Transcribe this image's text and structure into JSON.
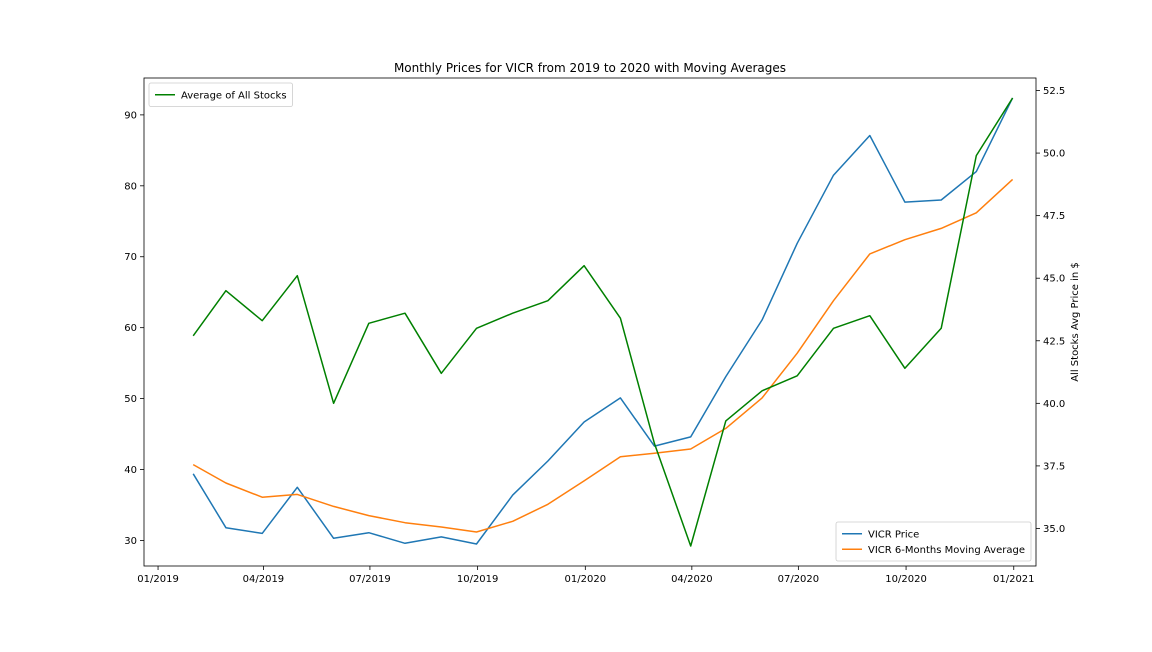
{
  "chart_data": {
    "type": "line",
    "title": "Monthly Prices for VICR from 2019 to 2020 with Moving Averages",
    "x_axis": {
      "type": "date",
      "range": [
        "2018-12-20",
        "2021-01-20"
      ],
      "ticks": [
        {
          "date": "2019-01-01",
          "label": "01/2019"
        },
        {
          "date": "2019-04-01",
          "label": "04/2019"
        },
        {
          "date": "2019-07-01",
          "label": "07/2019"
        },
        {
          "date": "2019-10-01",
          "label": "10/2019"
        },
        {
          "date": "2020-01-01",
          "label": "01/2020"
        },
        {
          "date": "2020-04-01",
          "label": "04/2020"
        },
        {
          "date": "2020-07-01",
          "label": "07/2020"
        },
        {
          "date": "2020-10-01",
          "label": "10/2020"
        },
        {
          "date": "2021-01-01",
          "label": "01/2021"
        }
      ]
    },
    "y_left": {
      "label": "",
      "range": [
        26.4,
        95.2
      ],
      "ticks": [
        30,
        40,
        50,
        60,
        70,
        80,
        90
      ],
      "tick_labels": [
        "30",
        "40",
        "50",
        "60",
        "70",
        "80",
        "90"
      ]
    },
    "y_right": {
      "label": "All Stocks Avg Price in $",
      "range": [
        33.5,
        53.0
      ],
      "ticks": [
        35.0,
        37.5,
        40.0,
        42.5,
        45.0,
        47.5,
        50.0,
        52.5
      ],
      "tick_labels": [
        "35.0",
        "37.5",
        "40.0",
        "42.5",
        "45.0",
        "47.5",
        "50.0",
        "52.5"
      ]
    },
    "x": [
      "2019-01-31",
      "2019-02-28",
      "2019-03-31",
      "2019-04-30",
      "2019-05-31",
      "2019-06-30",
      "2019-07-31",
      "2019-08-31",
      "2019-09-30",
      "2019-10-31",
      "2019-11-30",
      "2019-12-31",
      "2020-01-31",
      "2020-02-29",
      "2020-03-31",
      "2020-04-30",
      "2020-05-31",
      "2020-06-30",
      "2020-07-31",
      "2020-08-31",
      "2020-09-30",
      "2020-10-31",
      "2020-11-30",
      "2020-12-31"
    ],
    "series": [
      {
        "name": "VICR Price",
        "axis": "left",
        "color": "#1f77b4",
        "values": [
          39.4,
          31.8,
          31.0,
          37.5,
          30.3,
          31.1,
          29.6,
          30.5,
          29.5,
          36.4,
          41.2,
          46.7,
          50.1,
          43.3,
          44.6,
          53.1,
          61.1,
          71.9,
          81.5,
          87.1,
          77.7,
          78.0,
          82.0,
          92.4
        ]
      },
      {
        "name": "VICR 6-Months Moving Average",
        "axis": "left",
        "color": "#ff7f0e",
        "values": [
          40.7,
          38.1,
          36.1,
          36.5,
          34.8,
          33.5,
          32.5,
          31.9,
          31.2,
          32.7,
          35.1,
          38.4,
          41.8,
          42.3,
          42.9,
          45.8,
          50.1,
          56.4,
          63.8,
          70.4,
          72.4,
          74.0,
          76.2,
          80.9
        ]
      },
      {
        "name": "Average of All Stocks",
        "axis": "right",
        "color": "#008000",
        "values": [
          42.7,
          44.5,
          43.3,
          45.1,
          40.0,
          43.2,
          43.6,
          41.2,
          43.0,
          43.6,
          44.1,
          45.5,
          43.4,
          38.4,
          34.3,
          39.3,
          40.5,
          41.1,
          43.0,
          43.5,
          41.4,
          43.0,
          49.9,
          52.2
        ]
      }
    ],
    "legends": {
      "upper_left": [
        "Average of All Stocks"
      ],
      "lower_right": [
        "VICR Price",
        "VICR 6-Months Moving Average"
      ]
    },
    "grid": false
  }
}
